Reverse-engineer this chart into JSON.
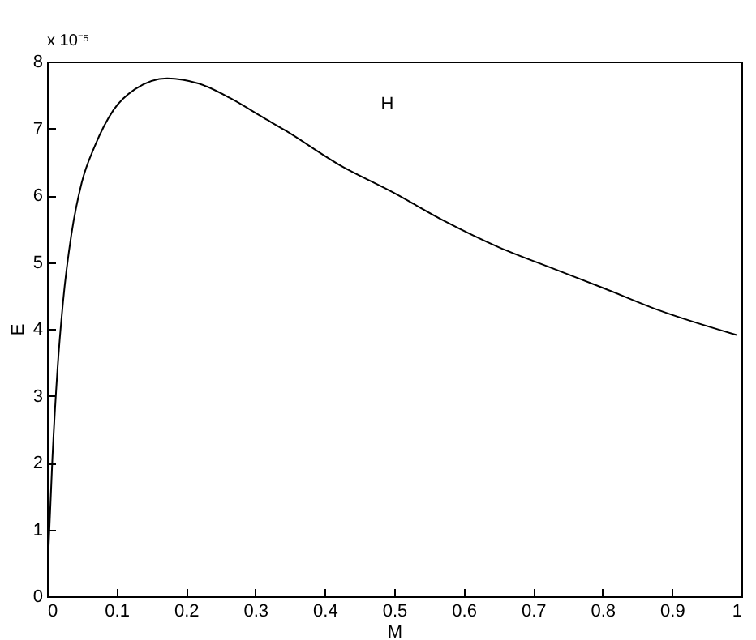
{
  "chart_data": {
    "type": "line",
    "xlabel": "M",
    "ylabel": "E",
    "annotations": [
      "x 10⁻⁵",
      "H"
    ],
    "x": [
      0,
      0.0023,
      0.0077,
      0.015,
      0.023,
      0.035,
      0.05,
      0.069,
      0.096,
      0.127,
      0.173,
      0.219,
      0.266,
      0.31,
      0.343,
      0.42,
      0.497,
      0.573,
      0.651,
      0.727,
      0.804,
      0.881,
      0.993
    ],
    "series": [
      {
        "color": "#000000",
        "values": [
          0,
          0.74,
          2.06,
          3.39,
          4.4,
          5.41,
          6.19,
          6.74,
          7.28,
          7.59,
          7.75,
          7.67,
          7.44,
          7.17,
          6.97,
          6.46,
          6.05,
          5.61,
          5.22,
          4.91,
          4.6,
          4.28,
          3.91
        ]
      }
    ],
    "xlim": [
      0,
      1
    ],
    "xticks": [
      0,
      0.1,
      0.2,
      0.3,
      0.4,
      0.5,
      0.6,
      0.7,
      0.8,
      0.9,
      1
    ],
    "ylim": [
      0,
      8
    ],
    "yticks": [
      0,
      1,
      2,
      3,
      4,
      5,
      6,
      7,
      8
    ],
    "grid": false,
    "marker": "none",
    "line_style": "solid"
  }
}
